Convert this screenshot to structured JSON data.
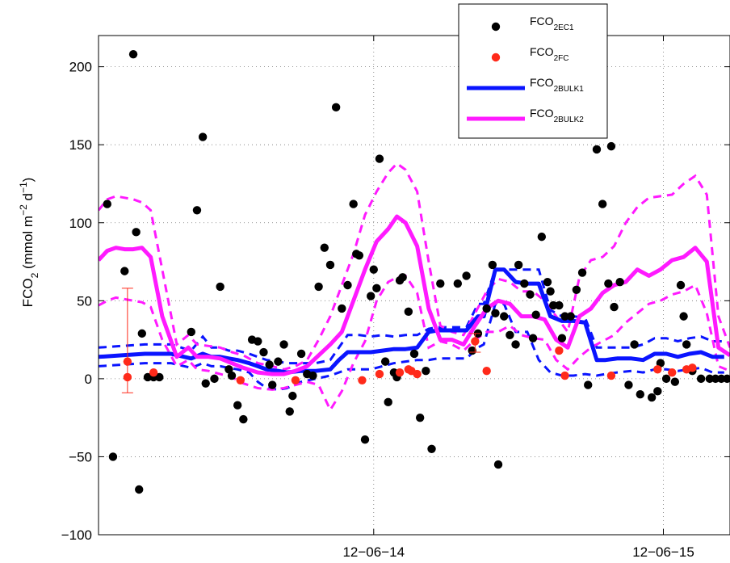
{
  "chart_data": {
    "type": "scatter",
    "ylabel": {
      "main": "FCO",
      "sub": "2",
      "rest1": " (mmol m",
      "sup1": "−2",
      "rest2": " d",
      "sup2": "−1",
      "close": ")"
    },
    "xlim": [
      0,
      2.18
    ],
    "ylim": [
      -100,
      220
    ],
    "yticks": [
      -100,
      -50,
      0,
      50,
      100,
      150,
      200
    ],
    "ytick_labels": [
      "−100",
      "−50",
      "0",
      "50",
      "100",
      "150",
      "200"
    ],
    "xticks": [
      0.95,
      1.95
    ],
    "xtick_labels": [
      "12−06−14",
      "12−06−15"
    ],
    "grid": true,
    "legend_position": "top-right",
    "colors": {
      "ec1": "#000000",
      "fc": "#ff2a1a",
      "bulk1": "#0a14ff",
      "bulk2": "#ff1aff"
    },
    "legend": [
      {
        "key": "ec1",
        "main": "FCO",
        "sub": "2EC1"
      },
      {
        "key": "fc",
        "main": "FCO",
        "sub": "2FC"
      },
      {
        "key": "bulk1",
        "main": "FCO",
        "sub": "2BULK1"
      },
      {
        "key": "bulk2",
        "main": "FCO",
        "sub": "2BULK2"
      }
    ],
    "series": {
      "ec1": {
        "x": [
          0.03,
          0.05,
          0.09,
          0.12,
          0.13,
          0.14,
          0.15,
          0.17,
          0.19,
          0.21,
          0.32,
          0.34,
          0.36,
          0.37,
          0.4,
          0.42,
          0.45,
          0.46,
          0.48,
          0.5,
          0.53,
          0.55,
          0.57,
          0.59,
          0.6,
          0.62,
          0.64,
          0.66,
          0.67,
          0.7,
          0.72,
          0.74,
          0.76,
          0.78,
          0.8,
          0.82,
          0.84,
          0.86,
          0.88,
          0.89,
          0.9,
          0.92,
          0.94,
          0.95,
          0.96,
          0.97,
          0.99,
          1.0,
          1.02,
          1.03,
          1.04,
          1.05,
          1.07,
          1.09,
          1.11,
          1.13,
          1.15,
          1.18,
          1.24,
          1.27,
          1.29,
          1.31,
          1.34,
          1.36,
          1.37,
          1.38,
          1.4,
          1.42,
          1.44,
          1.45,
          1.47,
          1.49,
          1.5,
          1.51,
          1.53,
          1.55,
          1.56,
          1.57,
          1.59,
          1.6,
          1.61,
          1.63,
          1.65,
          1.67,
          1.69,
          1.72,
          1.74,
          1.76,
          1.77,
          1.78,
          1.8,
          1.83,
          1.85,
          1.87,
          1.91,
          1.93,
          1.94,
          1.96,
          1.99,
          2.01,
          2.02,
          2.03,
          2.05,
          2.08,
          2.11,
          2.13,
          2.15,
          2.17
        ],
        "y": [
          112,
          -50,
          69,
          208,
          94,
          -71,
          29,
          1,
          1,
          1,
          30,
          108,
          155,
          -3,
          0,
          59,
          6,
          2,
          -17,
          -26,
          25,
          24,
          17,
          9,
          -4,
          11,
          22,
          -21,
          -11,
          16,
          3,
          2,
          59,
          84,
          73,
          174,
          45,
          60,
          112,
          80,
          79,
          -39,
          53,
          70,
          58,
          141,
          11,
          -15,
          4,
          1,
          63,
          65,
          43,
          16,
          -25,
          5,
          -45,
          61,
          61,
          66,
          18,
          29,
          45,
          73,
          42,
          -55,
          40,
          28,
          22,
          73,
          61,
          54,
          26,
          41,
          91,
          62,
          56,
          47,
          47,
          26,
          40,
          40,
          57,
          68,
          -4,
          147,
          112,
          61,
          149,
          46,
          62,
          -4,
          22,
          -10,
          -12,
          -8,
          10,
          0,
          -2,
          60,
          40,
          22,
          5,
          0,
          0,
          0,
          0,
          0
        ]
      },
      "fc": {
        "x": [
          0.1,
          0.1,
          0.19,
          0.49,
          0.68,
          0.91,
          0.97,
          1.04,
          1.07,
          1.08,
          1.1,
          1.3,
          1.34,
          1.59,
          1.61,
          1.77,
          1.93,
          1.98,
          2.03,
          2.05
        ],
        "y": [
          11,
          1,
          4,
          -1,
          -1,
          -1,
          3,
          4,
          6,
          5,
          3,
          24,
          5,
          18,
          2,
          2,
          6,
          4,
          6,
          7
        ],
        "err_low": [
          20,
          0,
          0,
          0,
          0,
          0,
          0,
          0,
          0,
          0,
          0,
          7,
          0,
          0,
          0,
          0,
          0,
          0,
          0,
          0
        ],
        "err_high": [
          47,
          0,
          0,
          0,
          0,
          0,
          0,
          0,
          0,
          0,
          0,
          5,
          0,
          0,
          0,
          0,
          0,
          0,
          0,
          0
        ]
      },
      "bulk1": {
        "x": [
          0.0,
          0.08,
          0.16,
          0.2,
          0.25,
          0.32,
          0.36,
          0.39,
          0.42,
          0.45,
          0.48,
          0.52,
          0.55,
          0.58,
          0.62,
          0.65,
          0.7,
          0.75,
          0.8,
          0.83,
          0.86,
          0.9,
          0.94,
          0.98,
          1.02,
          1.06,
          1.1,
          1.14,
          1.17,
          1.22,
          1.27,
          1.31,
          1.33,
          1.37,
          1.4,
          1.44,
          1.48,
          1.52,
          1.56,
          1.6,
          1.64,
          1.68,
          1.72,
          1.75,
          1.79,
          1.84,
          1.88,
          1.92,
          1.96,
          2.0,
          2.04,
          2.08,
          2.12,
          2.16
        ],
        "y": [
          14,
          15,
          16,
          16,
          16,
          13,
          16,
          14,
          14,
          13,
          12,
          10,
          8,
          6,
          5,
          4,
          5,
          5,
          6,
          12,
          17,
          17,
          17,
          18,
          19,
          19,
          20,
          30,
          31,
          31,
          31,
          40,
          40,
          70,
          70,
          62,
          61,
          61,
          40,
          37,
          37,
          36,
          12,
          12,
          13,
          13,
          12,
          16,
          16,
          14,
          16,
          17,
          14,
          14
        ],
        "upper": [
          20,
          21,
          22,
          22,
          22,
          18,
          27,
          20,
          20,
          18,
          18,
          16,
          14,
          12,
          11,
          10,
          10,
          10,
          12,
          20,
          28,
          28,
          27,
          28,
          27,
          28,
          28,
          32,
          33,
          33,
          33,
          48,
          48,
          70,
          70,
          70,
          70,
          70,
          44,
          40,
          40,
          39,
          20,
          20,
          20,
          20,
          22,
          26,
          26,
          24,
          26,
          27,
          24,
          24
        ],
        "lower": [
          8,
          9,
          10,
          10,
          10,
          7,
          10,
          8,
          8,
          7,
          6,
          4,
          -2,
          -6,
          -7,
          -6,
          -2,
          0,
          2,
          4,
          6,
          6,
          6,
          8,
          10,
          11,
          12,
          12,
          13,
          13,
          13,
          20,
          22,
          48,
          48,
          30,
          30,
          12,
          4,
          2,
          2,
          3,
          2,
          3,
          4,
          5,
          4,
          6,
          6,
          5,
          6,
          7,
          4,
          4
        ]
      },
      "bulk2": {
        "x": [
          0.0,
          0.03,
          0.06,
          0.09,
          0.12,
          0.15,
          0.18,
          0.22,
          0.27,
          0.29,
          0.31,
          0.34,
          0.38,
          0.42,
          0.46,
          0.5,
          0.55,
          0.6,
          0.64,
          0.68,
          0.72,
          0.76,
          0.8,
          0.84,
          0.88,
          0.92,
          0.96,
          1.0,
          1.03,
          1.06,
          1.1,
          1.14,
          1.18,
          1.22,
          1.26,
          1.3,
          1.34,
          1.38,
          1.42,
          1.46,
          1.5,
          1.54,
          1.58,
          1.62,
          1.66,
          1.7,
          1.74,
          1.78,
          1.82,
          1.86,
          1.9,
          1.94,
          1.98,
          2.02,
          2.06,
          2.1,
          2.14,
          2.18
        ],
        "y": [
          76,
          82,
          84,
          83,
          83,
          84,
          78,
          40,
          14,
          17,
          20,
          14,
          14,
          13,
          10,
          7,
          4,
          3,
          3,
          5,
          8,
          15,
          22,
          30,
          50,
          70,
          88,
          96,
          104,
          100,
          85,
          45,
          25,
          25,
          22,
          34,
          45,
          50,
          48,
          40,
          40,
          38,
          25,
          20,
          40,
          45,
          55,
          60,
          62,
          70,
          66,
          70,
          76,
          78,
          84,
          75,
          20,
          15
        ],
        "upper": [
          108,
          115,
          117,
          116,
          115,
          113,
          108,
          70,
          22,
          25,
          28,
          22,
          21,
          20,
          17,
          15,
          10,
          8,
          6,
          8,
          12,
          25,
          40,
          60,
          80,
          105,
          120,
          132,
          138,
          134,
          120,
          75,
          34,
          30,
          28,
          42,
          56,
          64,
          62,
          56,
          56,
          50,
          40,
          30,
          65,
          76,
          78,
          85,
          100,
          110,
          116,
          117,
          118,
          125,
          130,
          118,
          40,
          20
        ],
        "lower": [
          47,
          50,
          52,
          51,
          50,
          49,
          46,
          25,
          8,
          10,
          12,
          6,
          5,
          3,
          1,
          -3,
          -6,
          -7,
          -6,
          -4,
          -2,
          -4,
          -20,
          -8,
          10,
          24,
          50,
          62,
          65,
          66,
          55,
          20,
          24,
          22,
          18,
          25,
          30,
          30,
          34,
          28,
          26,
          25,
          12,
          6,
          14,
          20,
          24,
          28,
          36,
          42,
          48,
          50,
          54,
          56,
          60,
          42,
          8,
          5
        ]
      }
    }
  }
}
